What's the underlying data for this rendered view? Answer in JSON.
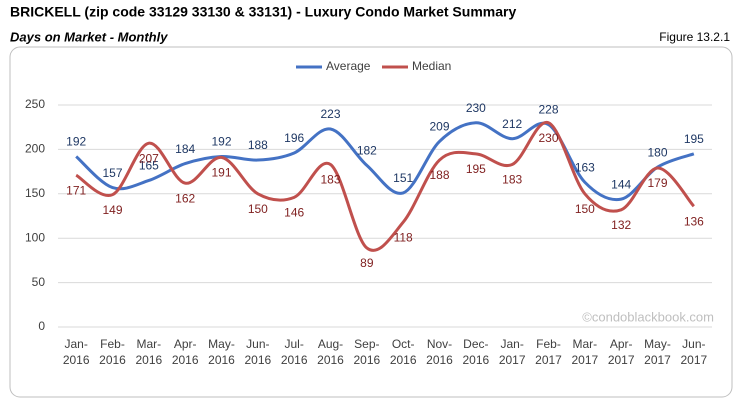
{
  "chart_data": {
    "type": "line",
    "title": "BRICKELL (zip code 33129 33130 & 33131) - Luxury Condo Market Summary",
    "subtitle": "Days on Market - Monthly",
    "figure": "Figure 13.2.1",
    "watermark": "©condoblackbook.com",
    "categories": [
      "Jan-2016",
      "Feb-2016",
      "Mar-2016",
      "Apr-2016",
      "May-2016",
      "Jun-2016",
      "Jul-2016",
      "Aug-2016",
      "Sep-2016",
      "Oct-2016",
      "Nov-2016",
      "Dec-2016",
      "Jan-2017",
      "Feb-2017",
      "Mar-2017",
      "Apr-2017",
      "May-2017",
      "Jun-2017"
    ],
    "series": [
      {
        "name": "Average",
        "color": "#4472c4",
        "label_color": "#1f3864",
        "values": [
          192,
          157,
          165,
          184,
          192,
          188,
          196,
          223,
          182,
          151,
          209,
          230,
          212,
          228,
          163,
          144,
          180,
          195
        ]
      },
      {
        "name": "Median",
        "color": "#c0504d",
        "label_color": "#7f1f1f",
        "values": [
          171,
          149,
          207,
          162,
          191,
          150,
          146,
          183,
          89,
          118,
          188,
          195,
          183,
          230,
          150,
          132,
          179,
          136
        ]
      }
    ],
    "ylim": [
      0,
      250
    ],
    "yticks": [
      0,
      50,
      100,
      150,
      200,
      250
    ],
    "grid": true,
    "legend": "top"
  }
}
